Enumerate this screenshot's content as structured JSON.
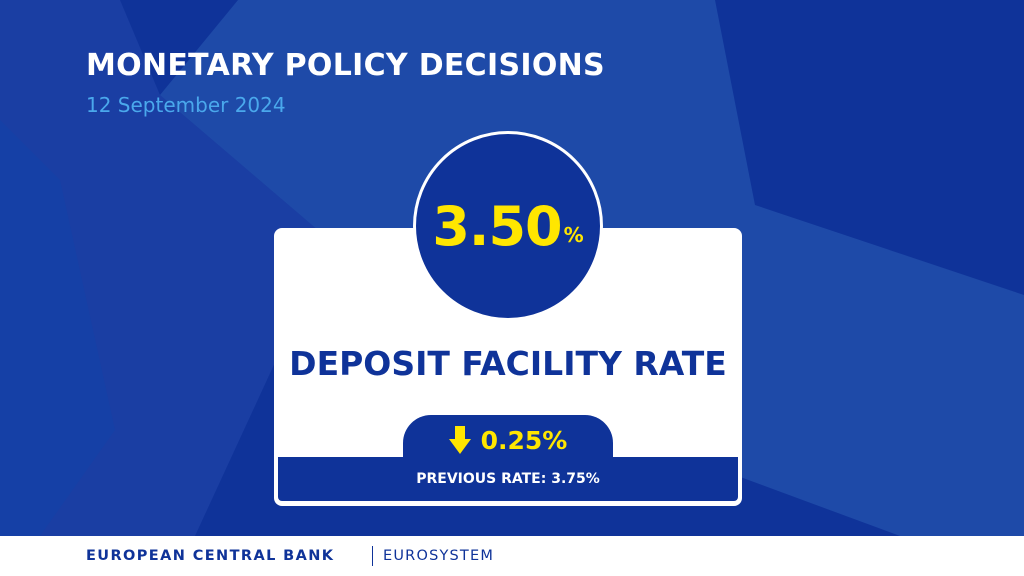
{
  "header": {
    "title": "MONETARY POLICY DECISIONS",
    "date": "12 September 2024"
  },
  "rate": {
    "value": "3.50",
    "unit": "%",
    "name": "DEPOSIT FACILITY RATE",
    "change": "0.25%",
    "change_direction_icon": "arrow-down-icon",
    "previous": "PREVIOUS RATE: 3.75%"
  },
  "footer": {
    "institution": "EUROPEAN CENTRAL BANK",
    "system": "EUROSYSTEM"
  },
  "colors": {
    "brand_blue": "#0f3399",
    "star_blue": "#1e4aa8",
    "accent_yellow": "#ffe600",
    "date_blue": "#4aa8ec",
    "white": "#ffffff"
  }
}
